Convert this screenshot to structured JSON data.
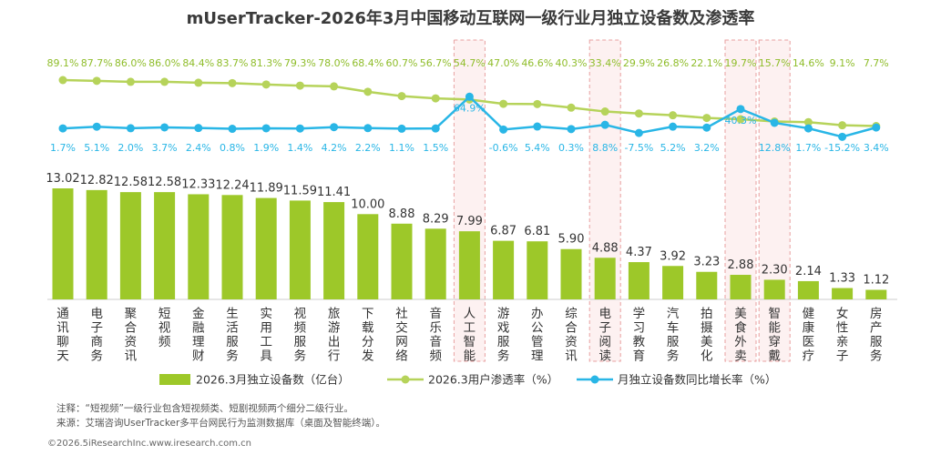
{
  "title": "mUserTracker-2026年3月中国移动互联网一级行业月独立设备数及渗透率",
  "chart_data": {
    "type": "bar",
    "categories": [
      "通讯聊天",
      "电子商务",
      "聚合资讯",
      "短视频",
      "金融理财",
      "生活服务",
      "实用工具",
      "视频服务",
      "旅游出行",
      "下载分发",
      "社交网络",
      "音乐音频",
      "人工智能",
      "游戏服务",
      "办公管理",
      "综合资讯",
      "电子阅读",
      "学习教育",
      "汽车服务",
      "拍摄美化",
      "美食外卖",
      "智能穿戴",
      "健康医疗",
      "女性亲子",
      "房产服务"
    ],
    "category_labels": [
      "通\n讯\n聊\n天",
      "电\n子\n商\n务",
      "聚\n合\n资\n讯",
      "短\n视\n频",
      "金\n融\n理\n财",
      "生\n活\n服\n务",
      "实\n用\n工\n具",
      "视\n频\n服\n务",
      "旅\n游\n出\n行",
      "下\n载\n分\n发",
      "社\n交\n网\n络",
      "音\n乐\n音\n频",
      "人\n工\n智\n能",
      "游\n戏\n服\n务",
      "办\n公\n管\n理",
      "综\n合\n资\n讯",
      "电\n子\n阅\n读",
      "学\n习\n教\n育",
      "汽\n车\n服\n务",
      "拍\n摄\n美\n化",
      "美\n食\n外\n卖",
      "智\n能\n穿\n戴",
      "健\n康\n医\n疗",
      "女\n性\n亲\n子",
      "房\n产\n服\n务"
    ],
    "series": [
      {
        "name": "2026.3月独立设备数（亿台）",
        "type": "bar",
        "color": "#9dc829",
        "values": [
          13.02,
          12.82,
          12.58,
          12.58,
          12.33,
          12.24,
          11.89,
          11.59,
          11.41,
          10.0,
          8.88,
          8.29,
          7.99,
          6.87,
          6.81,
          5.9,
          4.88,
          4.37,
          3.92,
          3.23,
          2.88,
          2.3,
          2.14,
          1.33,
          1.12
        ],
        "labels": [
          "13.02",
          "12.82",
          "12.58",
          "12.58",
          "12.33",
          "12.24",
          "11.89",
          "11.59",
          "11.41",
          "10.00",
          "8.88",
          "8.29",
          "7.99",
          "6.87",
          "6.81",
          "5.90",
          "4.88",
          "4.37",
          "3.92",
          "3.23",
          "2.88",
          "2.30",
          "2.14",
          "1.33",
          "1.12"
        ]
      },
      {
        "name": "2026.3用户渗透率（%）",
        "type": "line",
        "color": "#b6d35a",
        "label_color": "#8fbd2a",
        "values": [
          89.1,
          87.7,
          86.0,
          86.0,
          84.4,
          83.7,
          81.3,
          79.3,
          78.0,
          68.4,
          60.7,
          56.7,
          54.7,
          47.0,
          46.6,
          40.3,
          33.4,
          29.9,
          26.8,
          22.1,
          19.7,
          15.7,
          14.6,
          9.1,
          7.7
        ],
        "labels": [
          "89.1%",
          "87.7%",
          "86.0%",
          "86.0%",
          "84.4%",
          "83.7%",
          "81.3%",
          "79.3%",
          "78.0%",
          "68.4%",
          "60.7%",
          "56.7%",
          "54.7%",
          "47.0%",
          "46.6%",
          "40.3%",
          "33.4%",
          "29.9%",
          "26.8%",
          "22.1%",
          "19.7%",
          "15.7%",
          "14.6%",
          "9.1%",
          "7.7%"
        ]
      },
      {
        "name": "月独立设备数同比增长率（%）",
        "type": "line",
        "color": "#29b6e6",
        "values": [
          1.7,
          5.1,
          2.0,
          3.7,
          2.4,
          0.8,
          1.9,
          1.4,
          4.2,
          2.2,
          1.1,
          1.5,
          64.9,
          -0.6,
          5.4,
          0.3,
          8.8,
          -7.5,
          5.2,
          3.2,
          40.3,
          12.8,
          1.7,
          -15.2,
          3.4
        ],
        "labels": [
          "1.7%",
          "5.1%",
          "2.0%",
          "3.7%",
          "2.4%",
          "0.8%",
          "1.9%",
          "1.4%",
          "4.2%",
          "2.2%",
          "1.1%",
          "1.5%",
          "64.9%",
          "-0.6%",
          "5.4%",
          "0.3%",
          "8.8%",
          "-7.5%",
          "5.2%",
          "3.2%",
          "40.3%",
          "12.8%",
          "1.7%",
          "-15.2%",
          "3.4%"
        ]
      }
    ],
    "highlighted_categories": [
      "人工智能",
      "电子阅读",
      "美食外卖",
      "智能穿戴"
    ],
    "highlight_color": "#e8a0a0",
    "legend_position": "bottom"
  },
  "notes": {
    "line1": "注释：“短视频”一级行业包含短视频类、短剧视频两个细分二级行业。",
    "line2": "来源：艾瑞咨询UserTracker多平台网民行为监测数据库（桌面及智能终端）。"
  },
  "footer": "©2026.5iResearchInc.www.iresearch.com.cn"
}
